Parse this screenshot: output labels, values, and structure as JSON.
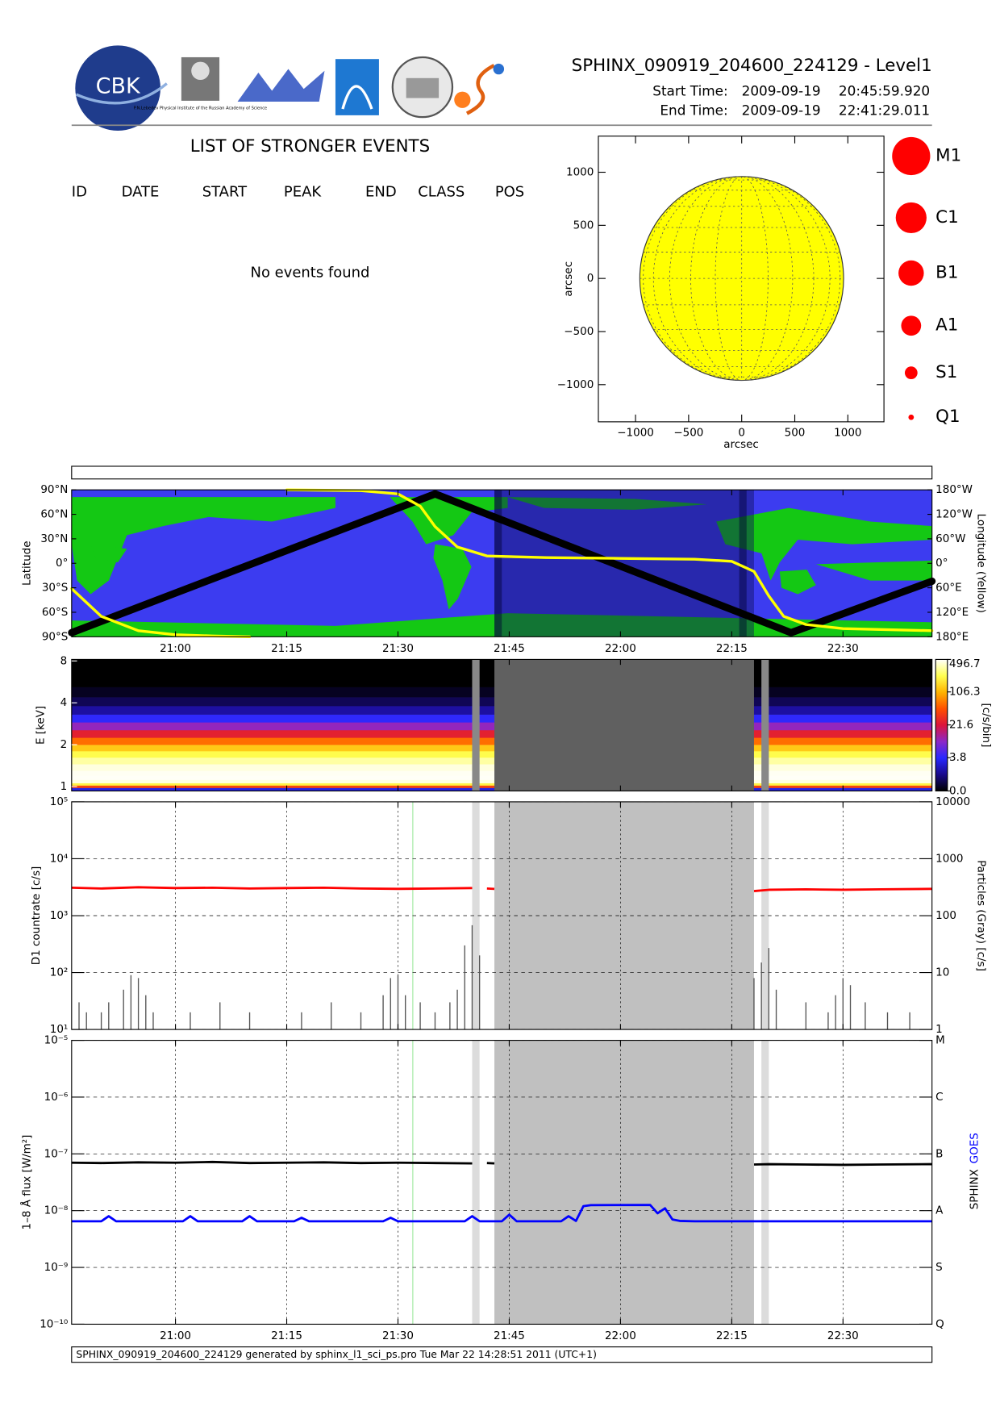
{
  "header": {
    "title": "SPHINX_090919_204600_224129 - Level1",
    "logo_text": "CBK",
    "institute_text": "P.N.Lebedev Physical Institute of the Russian Academy of Science",
    "start_label": "Start Time:",
    "start_date": "2009-09-19",
    "start_time": "20:45:59.920",
    "end_label": "End Time:",
    "end_date": "2009-09-19",
    "end_time": "22:41:29.011"
  },
  "events": {
    "title": "LIST OF STRONGER EVENTS",
    "columns": [
      "ID",
      "DATE",
      "START",
      "PEAK",
      "END",
      "CLASS",
      "POS"
    ],
    "message": "No events found"
  },
  "chart_data": [
    {
      "type": "disk",
      "xlabel": "arcsec",
      "ylabel": "arcsec",
      "xlim": [
        -1350,
        1340
      ],
      "ylim": [
        -1350,
        1340
      ],
      "xticks": [
        {
          "value": -1000,
          "label": "−1000"
        },
        {
          "value": -500,
          "label": "−500"
        },
        0,
        500,
        1000
      ],
      "yticks": [
        {
          "value": -1000,
          "label": "−1000"
        },
        {
          "value": -500,
          "label": "−500"
        },
        0,
        500,
        1000
      ],
      "disk_radius": 960,
      "disk_color": "#ffff00",
      "marker_color": "#ff0000",
      "size_legend": [
        "M1",
        "C1",
        "B1",
        "A1",
        "S1",
        "Q1"
      ]
    },
    {
      "type": "map",
      "ylabel": "Latitude",
      "y2label": "Longitude (Yellow)",
      "ocean_color": "#3c3cf0",
      "land_color": "#14c814",
      "xlim": [
        "20:46",
        "22:42"
      ],
      "xticks": [
        "21:00",
        "21:15",
        "21:30",
        "21:45",
        "22:00",
        "22:15",
        "22:30"
      ],
      "ylim": [
        -90,
        90
      ],
      "yticks": [
        {
          "value": 90,
          "label": "90°N"
        },
        {
          "value": 60,
          "label": "60°N"
        },
        {
          "value": 30,
          "label": "30°N"
        },
        {
          "value": 0,
          "label": "0°"
        },
        {
          "value": -30,
          "label": "30°S"
        },
        {
          "value": -60,
          "label": "60°S"
        },
        {
          "value": -90,
          "label": "90°S"
        }
      ],
      "y2lim": [
        180,
        -180
      ],
      "y2ticks": [
        {
          "value": -180,
          "label": "180°W"
        },
        {
          "value": -120,
          "label": "120°W"
        },
        {
          "value": -60,
          "label": "60°W"
        },
        {
          "value": 0,
          "label": "0°"
        },
        {
          "value": 60,
          "label": "60°E"
        },
        {
          "value": 120,
          "label": "120°E"
        },
        {
          "value": 180,
          "label": "180°E"
        }
      ],
      "gaps": [
        {
          "start": "21:43",
          "end": "22:18",
          "color": "#10105a"
        },
        {
          "start": "21:43",
          "end": "21:44",
          "color": "#000030"
        },
        {
          "start": "22:16",
          "end": "22:17",
          "color": "#000030"
        }
      ],
      "series": [
        {
          "color": "#000000",
          "x": [
            "20:46",
            "21:35",
            "22:23",
            "22:42"
          ],
          "values": [
            -85,
            85,
            -85,
            -22
          ]
        },
        {
          "color": "#ffff00",
          "axis": "y2",
          "x": [
            "20:46",
            "20:50",
            "20:55",
            "21:00",
            "21:05",
            "21:10",
            "21:12",
            "21:15",
            "21:25",
            "21:30",
            "21:33",
            "21:35",
            "21:38",
            "21:42",
            "21:50",
            "22:00",
            "22:10",
            "22:15",
            "22:18",
            "22:20",
            "22:22",
            "22:25",
            "22:30",
            "22:42"
          ],
          "values": [
            62,
            130,
            165,
            175,
            178,
            180,
            null,
            -180,
            -178,
            -170,
            -140,
            -90,
            -40,
            -18,
            -14,
            -12,
            -10,
            -5,
            20,
            80,
            130,
            150,
            160,
            165
          ]
        }
      ]
    },
    {
      "type": "heatmap",
      "ylabel": "E [keV]",
      "colorbar_label": "[c/s/bin]",
      "log_y": true,
      "xlim": [
        "20:46",
        "22:42"
      ],
      "ylim": [
        0.93,
        8.2
      ],
      "yticks": [
        1,
        2,
        4,
        8
      ],
      "energy_edges": [
        0.93,
        0.98,
        1.02,
        1.06,
        1.12,
        1.2,
        1.3,
        1.45,
        1.62,
        1.8,
        2.0,
        2.25,
        2.55,
        2.9,
        3.3,
        3.8,
        4.4,
        5.2,
        8.2
      ],
      "values": [
        3,
        40,
        200,
        440,
        480,
        470,
        430,
        330,
        220,
        130,
        60,
        25,
        10,
        4,
        1.5,
        0.6,
        0.2,
        0
      ],
      "clim": [
        0,
        496.7
      ],
      "cticks": [
        {
          "value": 0,
          "label": "0.0"
        },
        3.8,
        21.6,
        106.3,
        496.7
      ],
      "colormap": [
        "#000000",
        "#1a0a8c",
        "#2828ff",
        "#8c28c8",
        "#dc143c",
        "#ff5000",
        "#ffb400",
        "#ffff50",
        "#ffffff"
      ],
      "gaps": [
        {
          "start": "21:40",
          "end": "21:41",
          "color": "#888888"
        },
        {
          "start": "21:43",
          "end": "22:18",
          "color": "#606060"
        },
        {
          "start": "22:19",
          "end": "22:20",
          "color": "#888888"
        }
      ]
    },
    {
      "type": "line",
      "ylabel": "D1 countrate [c/s]",
      "y2label": "Particles (Gray) [c/s]",
      "log_y": true,
      "grid": true,
      "xlim": [
        "20:46",
        "22:42"
      ],
      "ylim": [
        10,
        100000
      ],
      "yticks": [
        {
          "value": 10,
          "label": "10¹"
        },
        {
          "value": 100,
          "label": "10²"
        },
        {
          "value": 1000,
          "label": "10³"
        },
        {
          "value": 10000,
          "label": "10⁴"
        },
        {
          "value": 100000,
          "label": "10⁵"
        }
      ],
      "y2lim": [
        1,
        10000
      ],
      "y2ticks": [
        1,
        10,
        100,
        1000,
        10000
      ],
      "vline": {
        "x": "21:32",
        "color": "#a0e8a0"
      },
      "gaps": [
        {
          "start": "21:40",
          "end": "21:41",
          "color": "#dcdcdc"
        },
        {
          "start": "21:43",
          "end": "22:18",
          "color": "#c0c0c0"
        },
        {
          "start": "22:19",
          "end": "22:20",
          "color": "#dcdcdc"
        }
      ],
      "series": [
        {
          "color": "#ff0000",
          "x": [
            "20:46",
            "20:50",
            "20:55",
            "21:00",
            "21:05",
            "21:10",
            "21:15",
            "21:20",
            "21:25",
            "21:30",
            "21:35",
            "21:40",
            "21:41",
            "21:42",
            "21:43",
            "22:00",
            "22:18",
            "22:20",
            "22:25",
            "22:30",
            "22:35",
            "22:42"
          ],
          "values": [
            3100,
            3000,
            3150,
            3050,
            3100,
            3000,
            3050,
            3100,
            3000,
            2950,
            3000,
            3050,
            null,
            3000,
            2950,
            null,
            2700,
            2850,
            2900,
            2850,
            2900,
            2950
          ]
        },
        {
          "color": "#555555",
          "axis": "y2",
          "style": "spikes",
          "x": [
            "20:47",
            "20:48",
            "20:50",
            "20:51",
            "20:53",
            "20:54",
            "20:55",
            "20:56",
            "20:57",
            "21:02",
            "21:06",
            "21:10",
            "21:17",
            "21:21",
            "21:25",
            "21:28",
            "21:29",
            "21:30",
            "21:31",
            "21:33",
            "21:35",
            "21:37",
            "21:38",
            "21:39",
            "21:40",
            "21:41",
            "22:18",
            "22:19",
            "22:20",
            "22:21",
            "22:25",
            "22:28",
            "22:29",
            "22:30",
            "22:31",
            "22:33",
            "22:36",
            "22:39"
          ],
          "values": [
            3,
            2,
            2,
            3,
            5,
            9,
            8,
            4,
            2,
            2,
            3,
            2,
            2,
            3,
            2,
            4,
            8,
            9,
            4,
            3,
            2,
            3,
            5,
            30,
            68,
            20,
            8,
            15,
            27,
            5,
            3,
            2,
            4,
            8,
            6,
            3,
            2,
            2
          ]
        }
      ]
    },
    {
      "type": "line",
      "ylabel": "1–8 Å flux [W/m²]",
      "log_y": true,
      "grid": true,
      "xlim": [
        "20:46",
        "22:42"
      ],
      "xticks": [
        "21:00",
        "21:15",
        "21:30",
        "21:45",
        "22:00",
        "22:15",
        "22:30"
      ],
      "ylim": [
        1e-10,
        1e-05
      ],
      "yticks": [
        {
          "value": 1e-10,
          "label": "10⁻¹⁰"
        },
        {
          "value": 1e-09,
          "label": "10⁻⁹"
        },
        {
          "value": 1e-08,
          "label": "10⁻⁸"
        },
        {
          "value": 1e-07,
          "label": "10⁻⁷"
        },
        {
          "value": 1e-06,
          "label": "10⁻⁶"
        },
        {
          "value": 1e-05,
          "label": "10⁻⁵"
        }
      ],
      "y2lim": [
        1e-10,
        1e-05
      ],
      "y2ticks": [
        {
          "value": 1e-05,
          "label": "M"
        },
        {
          "value": 1e-06,
          "label": "C"
        },
        {
          "value": 1e-07,
          "label": "B"
        },
        {
          "value": 1e-08,
          "label": "A"
        },
        {
          "value": 1e-09,
          "label": "S"
        },
        {
          "value": 1e-10,
          "label": "Q"
        }
      ],
      "vline": {
        "x": "21:32",
        "color": "#a0e8a0"
      },
      "gaps": [
        {
          "start": "21:40",
          "end": "21:41",
          "color": "#dcdcdc"
        },
        {
          "start": "21:43",
          "end": "22:18",
          "color": "#c0c0c0"
        },
        {
          "start": "22:19",
          "end": "22:20",
          "color": "#dcdcdc"
        }
      ],
      "series": [
        {
          "name": "SPHINX",
          "color": "#000000",
          "x": [
            "20:46",
            "20:50",
            "20:55",
            "21:00",
            "21:05",
            "21:10",
            "21:15",
            "21:20",
            "21:25",
            "21:30",
            "21:35",
            "21:40",
            "21:41",
            "21:42",
            "21:43",
            "22:00",
            "22:18",
            "22:20",
            "22:25",
            "22:30",
            "22:35",
            "22:42"
          ],
          "values": [
            7e-08,
            6.9e-08,
            7.1e-08,
            7e-08,
            7.2e-08,
            6.9e-08,
            7e-08,
            7.1e-08,
            6.9e-08,
            7e-08,
            6.9e-08,
            6.8e-08,
            null,
            6.9e-08,
            6.8e-08,
            null,
            6.5e-08,
            6.6e-08,
            6.5e-08,
            6.4e-08,
            6.5e-08,
            6.6e-08
          ]
        },
        {
          "name": "GOES",
          "color": "#0000ff",
          "x": [
            "20:46",
            "20:50",
            "20:51",
            "20:52",
            "21:01",
            "21:02",
            "21:03",
            "21:09",
            "21:10",
            "21:11",
            "21:16",
            "21:17",
            "21:18",
            "21:28",
            "21:29",
            "21:30",
            "21:39",
            "21:40",
            "21:41",
            "21:44",
            "21:45",
            "21:46",
            "21:52",
            "21:53",
            "21:54",
            "21:55",
            "21:56",
            "22:04",
            "22:05",
            "22:06",
            "22:07",
            "22:08",
            "22:10",
            "22:42"
          ],
          "values": [
            6.5e-09,
            6.5e-09,
            8e-09,
            6.5e-09,
            6.5e-09,
            8e-09,
            6.5e-09,
            6.5e-09,
            8e-09,
            6.5e-09,
            6.5e-09,
            7.5e-09,
            6.5e-09,
            6.5e-09,
            7.5e-09,
            6.5e-09,
            6.5e-09,
            8e-09,
            6.5e-09,
            6.5e-09,
            8.5e-09,
            6.5e-09,
            6.5e-09,
            8e-09,
            6.6e-09,
            1.2e-08,
            1.25e-08,
            1.26e-08,
            9e-09,
            1.1e-08,
            7e-09,
            6.6e-09,
            6.5e-09,
            6.5e-09
          ]
        }
      ]
    }
  ],
  "footer": "SPHINX_090919_204600_224129 generated by sphinx_l1_sci_ps.pro Tue Mar 22 14:28:51 2011 (UTC+1)"
}
